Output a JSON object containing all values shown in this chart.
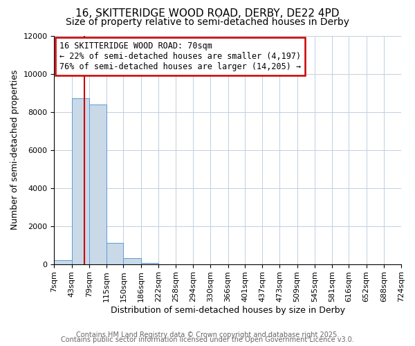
{
  "title": "16, SKITTERIDGE WOOD ROAD, DERBY, DE22 4PD",
  "subtitle": "Size of property relative to semi-detached houses in Derby",
  "xlabel": "Distribution of semi-detached houses by size in Derby",
  "ylabel": "Number of semi-detached properties",
  "bar_left_edges": [
    7,
    43,
    79,
    115,
    150,
    186,
    222,
    258,
    294,
    330,
    366,
    401,
    437,
    473,
    509,
    545,
    581,
    616,
    652,
    688
  ],
  "bar_widths": [
    36,
    36,
    36,
    35,
    36,
    36,
    36,
    36,
    36,
    36,
    35,
    36,
    36,
    36,
    36,
    36,
    35,
    36,
    36,
    36
  ],
  "bar_heights": [
    200,
    8700,
    8400,
    1100,
    300,
    50,
    0,
    0,
    0,
    0,
    0,
    0,
    0,
    0,
    0,
    0,
    0,
    0,
    0,
    0
  ],
  "bar_color": "#c9d9e8",
  "bar_edge_color": "#5b9bd5",
  "property_line_x": 70,
  "property_line_color": "#cc0000",
  "annotation_title": "16 SKITTERIDGE WOOD ROAD: 70sqm",
  "annotation_line1": "← 22% of semi-detached houses are smaller (4,197)",
  "annotation_line2": "76% of semi-detached houses are larger (14,205) →",
  "annotation_box_color": "#cc0000",
  "tick_positions": [
    7,
    43,
    79,
    115,
    150,
    186,
    222,
    258,
    294,
    330,
    366,
    401,
    437,
    473,
    509,
    545,
    581,
    616,
    652,
    688,
    724
  ],
  "tick_labels": [
    "7sqm",
    "43sqm",
    "79sqm",
    "115sqm",
    "150sqm",
    "186sqm",
    "222sqm",
    "258sqm",
    "294sqm",
    "330sqm",
    "366sqm",
    "401sqm",
    "437sqm",
    "473sqm",
    "509sqm",
    "545sqm",
    "581sqm",
    "616sqm",
    "652sqm",
    "688sqm",
    "724sqm"
  ],
  "ylim": [
    0,
    12000
  ],
  "yticks": [
    0,
    2000,
    4000,
    6000,
    8000,
    10000,
    12000
  ],
  "background_color": "#ffffff",
  "grid_color": "#c0cfe0",
  "footer_line1": "Contains HM Land Registry data © Crown copyright and database right 2025.",
  "footer_line2": "Contains public sector information licensed under the Open Government Licence v3.0.",
  "title_fontsize": 11,
  "subtitle_fontsize": 10,
  "xlabel_fontsize": 9,
  "ylabel_fontsize": 9,
  "tick_fontsize": 8,
  "annotation_fontsize": 8.5,
  "footer_fontsize": 7
}
